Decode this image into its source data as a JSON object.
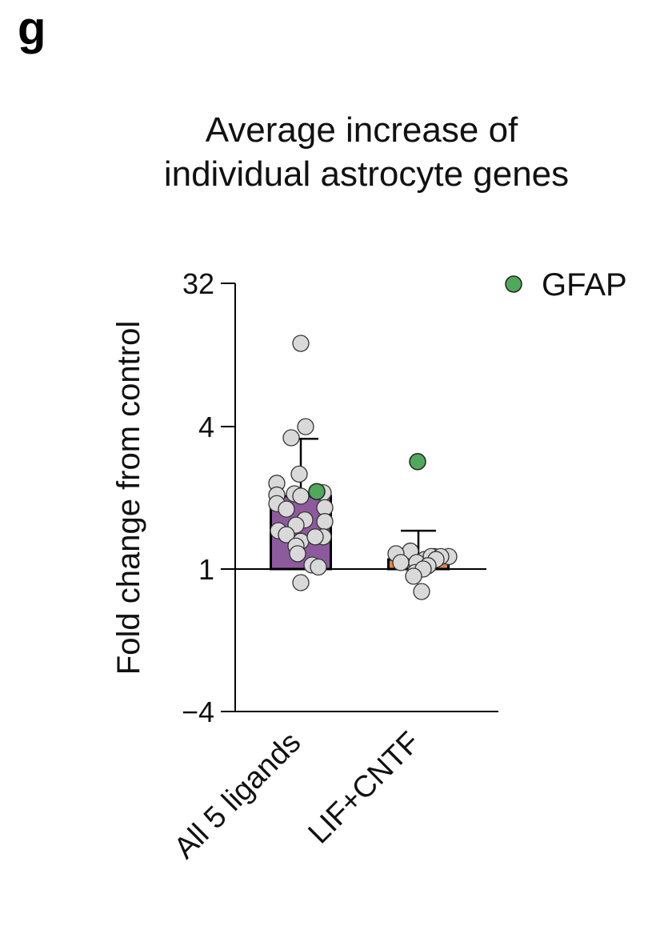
{
  "panel_letter": "g",
  "chart_data": {
    "type": "bar",
    "title": "Average increase of\nindividual astrocyte genes",
    "title_lines": [
      "Average increase of",
      "individual astrocyte genes"
    ],
    "ylabel": "Fold change  from control",
    "xlabel": "",
    "y_scale": "log2",
    "yticks": [
      -4,
      1,
      4,
      32
    ],
    "ytick_labels": [
      "−4",
      "1",
      "4",
      "32"
    ],
    "categories": [
      "All 5 ligands",
      "LIF+CNTF"
    ],
    "bars": [
      {
        "category": "All 5 ligands",
        "value": 2.9,
        "error_upper": 6.7,
        "color": "#8e5a9e"
      },
      {
        "category": "LIF+CNTF",
        "value": 1.15,
        "error_upper": 1.75,
        "color": "#e0894a"
      }
    ],
    "points": [
      {
        "category": "All 5 ligands",
        "values": [
          27,
          8.0,
          6.8,
          4.0,
          3.5,
          3.0,
          2.95,
          2.9,
          3.05,
          2.6,
          2.45,
          2.05,
          2.4,
          2.0,
          1.75,
          1.9,
          1.6,
          1.5,
          1.65,
          1.6,
          1.4,
          1.25,
          1.06,
          1.03,
          0.82
        ]
      },
      {
        "category": "LIF+CNTF",
        "values": [
          1.3,
          1.2,
          1.25,
          1.2,
          1.15,
          1.1,
          1.2,
          1.2,
          1.1,
          1.15,
          1.05,
          0.95,
          1.0,
          0.9,
          0.72
        ]
      }
    ],
    "highlight_points": [
      {
        "category": "All 5 ligands",
        "value": 3.1,
        "label": "GFAP"
      },
      {
        "category": "LIF+CNTF",
        "value": 4.8,
        "label": "GFAP"
      }
    ],
    "legend": [
      {
        "label": "GFAP",
        "color": "#4fa85c"
      }
    ],
    "legend_position": "top-right",
    "point_color": "#d9d9d9",
    "grid": false
  }
}
